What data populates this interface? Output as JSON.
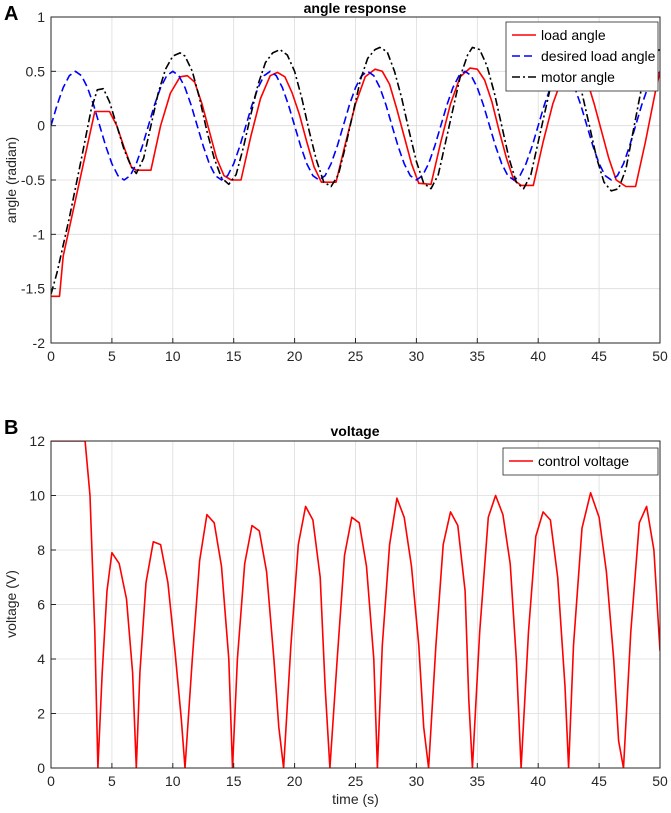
{
  "chart_data": [
    {
      "type": "line",
      "panel": "A",
      "title": "angle response",
      "xlabel": "",
      "ylabel": "angle (radian)",
      "xlim": [
        0,
        50
      ],
      "ylim": [
        -2,
        1
      ],
      "xticks": [
        0,
        5,
        10,
        15,
        20,
        25,
        30,
        35,
        40,
        45,
        50
      ],
      "yticks": [
        -2,
        -1.5,
        -1,
        -0.5,
        0,
        0.5,
        1
      ],
      "xtick_labels": [
        "0",
        "5",
        "10",
        "15",
        "20",
        "25",
        "30",
        "35",
        "40",
        "45",
        "50"
      ],
      "ytick_labels": [
        "-2",
        "-1.5",
        "-1",
        "-0.5",
        "0",
        "0.5",
        "1"
      ],
      "grid": true,
      "legend_position": "top-right",
      "series": [
        {
          "name": "load angle",
          "color": "#ff0000",
          "dash": "solid",
          "x": [
            0,
            0.7,
            1.0,
            3.6,
            4.2,
            4.8,
            5.4,
            6.0,
            6.6,
            7.0,
            7.6,
            8.2,
            9.0,
            9.8,
            10.6,
            11.2,
            11.8,
            12.4,
            13.0,
            13.6,
            14.2,
            14.8,
            15.6,
            16.4,
            17.2,
            18.0,
            18.6,
            19.2,
            19.8,
            20.4,
            21.0,
            21.6,
            22.2,
            23.4,
            24.2,
            25.0,
            25.8,
            26.6,
            27.2,
            27.8,
            28.4,
            29.0,
            29.6,
            30.2,
            31.2,
            32.0,
            32.8,
            33.6,
            34.4,
            35.0,
            35.6,
            36.2,
            36.8,
            37.4,
            38.0,
            38.6,
            39.6,
            40.4,
            41.2,
            42.0,
            42.8,
            43.4,
            44.0,
            44.6,
            45.2,
            45.8,
            46.4,
            47.2,
            48.0,
            48.8,
            49.6,
            50.0
          ],
          "y": [
            -1.57,
            -1.57,
            -1.2,
            0.13,
            0.13,
            0.13,
            0.0,
            -0.2,
            -0.38,
            -0.41,
            -0.41,
            -0.41,
            0.0,
            0.3,
            0.45,
            0.46,
            0.4,
            0.2,
            -0.05,
            -0.3,
            -0.46,
            -0.5,
            -0.5,
            -0.1,
            0.25,
            0.46,
            0.49,
            0.45,
            0.3,
            0.1,
            -0.15,
            -0.38,
            -0.52,
            -0.52,
            -0.15,
            0.2,
            0.45,
            0.52,
            0.5,
            0.38,
            0.15,
            -0.1,
            -0.35,
            -0.53,
            -0.54,
            -0.15,
            0.2,
            0.45,
            0.53,
            0.52,
            0.42,
            0.22,
            -0.05,
            -0.3,
            -0.5,
            -0.55,
            -0.55,
            -0.15,
            0.2,
            0.45,
            0.54,
            0.52,
            0.42,
            0.2,
            -0.05,
            -0.3,
            -0.5,
            -0.56,
            -0.56,
            -0.15,
            0.3,
            0.5
          ]
        },
        {
          "name": "desired load angle",
          "color": "#0000ff",
          "dash": "dashed",
          "x": [
            0,
            0.5,
            1.0,
            1.5,
            2.0,
            2.5,
            3.0,
            3.5,
            4.0,
            4.5,
            5.0,
            5.5,
            6.0,
            6.5,
            7.0,
            7.5,
            8.0,
            8.5,
            9.0,
            9.5,
            10.0,
            10.5,
            11.0,
            11.5,
            12.0,
            12.5,
            13.0,
            13.5,
            14.0,
            14.5,
            15.0,
            15.5,
            16.0,
            16.5,
            17.0,
            17.5,
            18.0,
            18.5,
            19.0,
            19.5,
            20.0,
            20.5,
            21.0,
            21.5,
            22.0,
            22.5,
            23.0,
            23.5,
            24.0,
            24.5,
            25.0,
            25.5,
            26.0,
            26.5,
            27.0,
            27.5,
            28.0,
            28.5,
            29.0,
            29.5,
            30.0,
            30.5,
            31.0,
            31.5,
            32.0,
            32.5,
            33.0,
            33.5,
            34.0,
            34.5,
            35.0,
            35.5,
            36.0,
            36.5,
            37.0,
            37.5,
            38.0,
            38.5,
            39.0,
            39.5,
            40.0,
            40.5,
            41.0,
            41.5,
            42.0,
            42.5,
            43.0,
            43.5,
            44.0,
            44.5,
            45.0,
            45.5,
            46.0,
            46.5,
            47.0,
            47.5,
            48.0,
            48.5,
            49.0,
            49.5,
            50.0
          ],
          "y": [
            0.0,
            0.19,
            0.35,
            0.46,
            0.5,
            0.46,
            0.35,
            0.19,
            0.0,
            -0.19,
            -0.35,
            -0.46,
            -0.5,
            -0.46,
            -0.35,
            -0.19,
            0.0,
            0.19,
            0.35,
            0.46,
            0.5,
            0.46,
            0.35,
            0.19,
            0.0,
            -0.19,
            -0.35,
            -0.46,
            -0.5,
            -0.46,
            -0.35,
            -0.19,
            0.0,
            0.19,
            0.35,
            0.46,
            0.5,
            0.46,
            0.35,
            0.19,
            0.0,
            -0.19,
            -0.35,
            -0.46,
            -0.5,
            -0.46,
            -0.35,
            -0.19,
            0.0,
            0.19,
            0.35,
            0.46,
            0.5,
            0.46,
            0.35,
            0.19,
            0.0,
            -0.19,
            -0.35,
            -0.46,
            -0.5,
            -0.46,
            -0.35,
            -0.19,
            0.0,
            0.19,
            0.35,
            0.46,
            0.5,
            0.46,
            0.35,
            0.19,
            0.0,
            -0.19,
            -0.35,
            -0.46,
            -0.5,
            -0.46,
            -0.35,
            -0.19,
            0.0,
            0.19,
            0.35,
            0.46,
            0.5,
            0.46,
            0.35,
            0.19,
            0.0,
            -0.19,
            -0.35,
            -0.46,
            -0.5,
            -0.46,
            -0.35,
            -0.19,
            0.0,
            0.19,
            0.35,
            0.46,
            0.5
          ]
        },
        {
          "name": "motor angle",
          "color": "#000000",
          "dash": "dashdot",
          "x": [
            0,
            0.5,
            1.5,
            2.5,
            3.3,
            3.8,
            4.3,
            4.8,
            5.4,
            6.0,
            6.6,
            7.0,
            7.6,
            8.2,
            8.8,
            9.4,
            10.0,
            10.6,
            11.0,
            11.6,
            12.2,
            12.8,
            13.4,
            14.0,
            14.6,
            15.2,
            15.8,
            16.4,
            17.0,
            17.6,
            18.2,
            18.8,
            19.4,
            20.0,
            20.6,
            21.2,
            21.8,
            22.4,
            23.0,
            23.6,
            24.2,
            24.8,
            25.4,
            26.0,
            26.6,
            27.0,
            27.6,
            28.2,
            28.8,
            29.4,
            30.0,
            30.6,
            31.2,
            31.8,
            32.4,
            33.0,
            33.6,
            34.2,
            34.6,
            35.2,
            35.8,
            36.4,
            37.0,
            37.6,
            38.2,
            38.8,
            39.4,
            40.0,
            40.6,
            41.2,
            41.8,
            42.4,
            43.0,
            43.6,
            44.2,
            44.8,
            45.4,
            46.0,
            46.6,
            47.2,
            47.8,
            48.4,
            49.0,
            49.6,
            50.0
          ],
          "y": [
            -1.55,
            -1.35,
            -0.85,
            -0.3,
            0.15,
            0.33,
            0.34,
            0.22,
            0.0,
            -0.22,
            -0.38,
            -0.44,
            -0.3,
            0.0,
            0.3,
            0.52,
            0.64,
            0.67,
            0.64,
            0.5,
            0.25,
            -0.05,
            -0.3,
            -0.48,
            -0.54,
            -0.45,
            -0.2,
            0.1,
            0.38,
            0.58,
            0.67,
            0.7,
            0.65,
            0.5,
            0.25,
            -0.05,
            -0.32,
            -0.52,
            -0.56,
            -0.45,
            -0.18,
            0.12,
            0.42,
            0.62,
            0.7,
            0.72,
            0.68,
            0.5,
            0.25,
            -0.05,
            -0.33,
            -0.53,
            -0.58,
            -0.45,
            -0.15,
            0.15,
            0.45,
            0.65,
            0.72,
            0.7,
            0.55,
            0.3,
            0.0,
            -0.3,
            -0.52,
            -0.58,
            -0.45,
            -0.15,
            0.15,
            0.45,
            0.62,
            0.65,
            0.58,
            0.3,
            0.0,
            -0.3,
            -0.52,
            -0.6,
            -0.58,
            -0.4,
            -0.05,
            0.3,
            0.55,
            0.68,
            0.7
          ]
        }
      ]
    },
    {
      "type": "line",
      "panel": "B",
      "title": "voltage",
      "xlabel": "time (s)",
      "ylabel": "voltage (V)",
      "xlim": [
        0,
        50
      ],
      "ylim": [
        0,
        12
      ],
      "xticks": [
        0,
        5,
        10,
        15,
        20,
        25,
        30,
        35,
        40,
        45,
        50
      ],
      "yticks": [
        0,
        2,
        4,
        6,
        8,
        10,
        12
      ],
      "xtick_labels": [
        "0",
        "5",
        "10",
        "15",
        "20",
        "25",
        "30",
        "35",
        "40",
        "45",
        "50"
      ],
      "ytick_labels": [
        "0",
        "2",
        "4",
        "6",
        "8",
        "10",
        "12"
      ],
      "grid": true,
      "legend_position": "top-right",
      "series": [
        {
          "name": "control voltage",
          "color": "#ff0000",
          "dash": "solid",
          "x": [
            0,
            2.8,
            3.2,
            3.6,
            3.85,
            4.2,
            4.6,
            5.0,
            5.6,
            6.2,
            6.7,
            7.0,
            7.3,
            7.8,
            8.4,
            9.0,
            9.6,
            10.2,
            10.7,
            11.0,
            11.6,
            12.2,
            12.8,
            13.4,
            14.0,
            14.6,
            14.9,
            15.3,
            15.9,
            16.5,
            17.1,
            17.7,
            18.3,
            18.7,
            19.1,
            19.7,
            20.3,
            20.9,
            21.5,
            22.1,
            22.5,
            22.9,
            23.5,
            24.1,
            24.7,
            25.3,
            25.9,
            26.5,
            26.8,
            27.2,
            27.8,
            28.4,
            29.0,
            29.6,
            30.2,
            30.6,
            31.0,
            31.6,
            32.2,
            32.8,
            33.4,
            34.0,
            34.3,
            34.6,
            35.2,
            35.9,
            36.5,
            37.1,
            37.7,
            38.2,
            38.6,
            39.2,
            39.8,
            40.4,
            41.0,
            41.6,
            42.2,
            42.5,
            42.9,
            43.6,
            44.3,
            45.0,
            45.6,
            46.2,
            46.6,
            47.0,
            47.6,
            48.3,
            48.9,
            49.5,
            50.0
          ],
          "y": [
            12,
            12,
            10.0,
            5.0,
            0,
            3.5,
            6.5,
            7.9,
            7.5,
            6.2,
            3.5,
            0,
            3.5,
            6.8,
            8.3,
            8.2,
            6.8,
            4.2,
            1.8,
            0,
            4.0,
            7.6,
            9.3,
            9.0,
            7.4,
            4.0,
            0,
            4.0,
            7.5,
            8.9,
            8.7,
            7.2,
            4.0,
            1.5,
            0,
            4.5,
            8.2,
            9.6,
            9.1,
            7.0,
            3.0,
            0,
            4.0,
            7.8,
            9.2,
            9.0,
            7.4,
            4.0,
            0,
            4.5,
            8.2,
            9.9,
            9.2,
            7.4,
            4.5,
            1.5,
            0,
            4.5,
            8.2,
            9.4,
            8.9,
            6.5,
            2.5,
            0,
            5.0,
            9.2,
            10.0,
            9.3,
            7.5,
            4.0,
            0,
            5.0,
            8.5,
            9.4,
            9.1,
            7.0,
            3.0,
            0,
            4.5,
            8.8,
            10.1,
            9.2,
            7.2,
            4.0,
            1.0,
            0,
            5.0,
            9.0,
            9.6,
            8.0,
            4.3
          ]
        }
      ]
    }
  ]
}
